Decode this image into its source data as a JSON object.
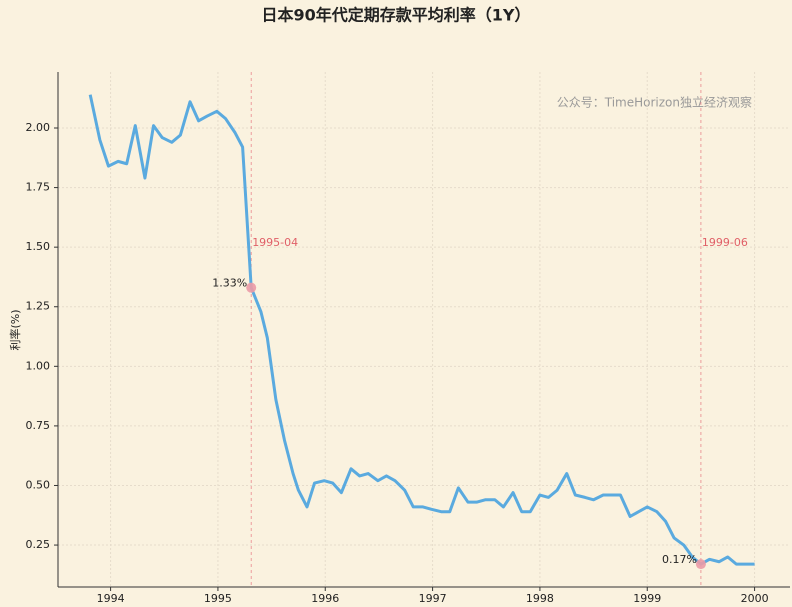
{
  "chart_data": {
    "type": "line",
    "title": "日本90年代定期存款平均利率（1Y）",
    "y_label": "利率(%)",
    "watermark": "公众号：TimeHorizon独立经济观察",
    "x": [
      1993.81,
      1993.9,
      1993.98,
      1994.07,
      1994.15,
      1994.23,
      1994.32,
      1994.4,
      1994.48,
      1994.57,
      1994.65,
      1994.74,
      1994.82,
      1994.9,
      1994.99,
      1995.07,
      1995.16,
      1995.23,
      1995.31,
      1995.4,
      1995.46,
      1995.54,
      1995.62,
      1995.7,
      1995.75,
      1995.83,
      1995.9,
      1995.99,
      1996.07,
      1996.15,
      1996.24,
      1996.32,
      1996.4,
      1996.49,
      1996.57,
      1996.65,
      1996.74,
      1996.82,
      1996.91,
      1996.99,
      1997.08,
      1997.16,
      1997.24,
      1997.33,
      1997.41,
      1997.49,
      1997.58,
      1997.66,
      1997.75,
      1997.83,
      1997.91,
      1998.0,
      1998.08,
      1998.16,
      1998.25,
      1998.33,
      1998.42,
      1998.5,
      1998.59,
      1998.67,
      1998.75,
      1998.84,
      1998.92,
      1999.0,
      1999.09,
      1999.17,
      1999.25,
      1999.34,
      1999.42,
      1999.5,
      1999.58,
      1999.67,
      1999.75,
      1999.83,
      1999.92,
      2000.0
    ],
    "series": [
      {
        "name": "利率",
        "color": "#5aaadf",
        "values": [
          2.14,
          1.95,
          1.84,
          1.86,
          1.85,
          2.01,
          1.79,
          2.01,
          1.96,
          1.94,
          1.97,
          2.11,
          2.03,
          2.05,
          2.07,
          2.04,
          1.98,
          1.92,
          1.33,
          1.23,
          1.12,
          0.86,
          0.69,
          0.55,
          0.48,
          0.41,
          0.51,
          0.52,
          0.51,
          0.47,
          0.57,
          0.54,
          0.55,
          0.52,
          0.54,
          0.52,
          0.48,
          0.41,
          0.41,
          0.4,
          0.39,
          0.39,
          0.49,
          0.43,
          0.43,
          0.44,
          0.44,
          0.41,
          0.47,
          0.39,
          0.39,
          0.46,
          0.45,
          0.48,
          0.55,
          0.46,
          0.45,
          0.44,
          0.46,
          0.46,
          0.46,
          0.37,
          0.39,
          0.41,
          0.39,
          0.35,
          0.28,
          0.25,
          0.2,
          0.17,
          0.19,
          0.18,
          0.2,
          0.17,
          0.17,
          0.17
        ]
      }
    ],
    "markers": [
      {
        "x": 1995.31,
        "y": 1.33,
        "label": "1.33%"
      },
      {
        "x": 1999.5,
        "y": 0.17,
        "label": "0.17%"
      }
    ],
    "vlines": [
      {
        "x": 1995.31,
        "label": "1995-04"
      },
      {
        "x": 1999.5,
        "label": "1999-06"
      }
    ],
    "xlim": [
      1993.51,
      2000.33
    ],
    "ylim": [
      0.074,
      2.235
    ],
    "xticks": [
      1994,
      1995,
      1996,
      1997,
      1998,
      1999,
      2000
    ],
    "yticks": [
      0.25,
      {
        "value": 0.5,
        "label": "0.50"
      },
      0.75,
      {
        "value": 1,
        "label": "1.00"
      },
      1.25,
      {
        "value": 1.5,
        "label": "1.50"
      },
      1.75,
      {
        "value": 2,
        "label": "2.00"
      }
    ],
    "grid": true
  }
}
